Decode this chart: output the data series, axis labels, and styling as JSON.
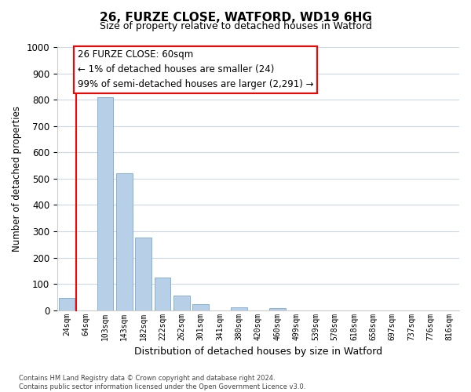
{
  "title": "26, FURZE CLOSE, WATFORD, WD19 6HG",
  "subtitle": "Size of property relative to detached houses in Watford",
  "xlabel": "Distribution of detached houses by size in Watford",
  "ylabel": "Number of detached properties",
  "bar_labels": [
    "24sqm",
    "64sqm",
    "103sqm",
    "143sqm",
    "182sqm",
    "222sqm",
    "262sqm",
    "301sqm",
    "341sqm",
    "380sqm",
    "420sqm",
    "460sqm",
    "499sqm",
    "539sqm",
    "578sqm",
    "618sqm",
    "658sqm",
    "697sqm",
    "737sqm",
    "776sqm",
    "816sqm"
  ],
  "bar_values": [
    47,
    0,
    810,
    520,
    275,
    125,
    57,
    22,
    0,
    12,
    0,
    7,
    0,
    0,
    0,
    0,
    0,
    0,
    0,
    0,
    0
  ],
  "bar_color": "#b8cfe8",
  "bar_edge_color": "#7aaad0",
  "ylim": [
    0,
    1000
  ],
  "yticks": [
    0,
    100,
    200,
    300,
    400,
    500,
    600,
    700,
    800,
    900,
    1000
  ],
  "annotation_title": "26 FURZE CLOSE: 60sqm",
  "annotation_line1": "← 1% of detached houses are smaller (24)",
  "annotation_line2": "99% of semi-detached houses are larger (2,291) →",
  "footer_line1": "Contains HM Land Registry data © Crown copyright and database right 2024.",
  "footer_line2": "Contains public sector information licensed under the Open Government Licence v3.0.",
  "background_color": "#ffffff",
  "grid_color": "#ccd9e8"
}
